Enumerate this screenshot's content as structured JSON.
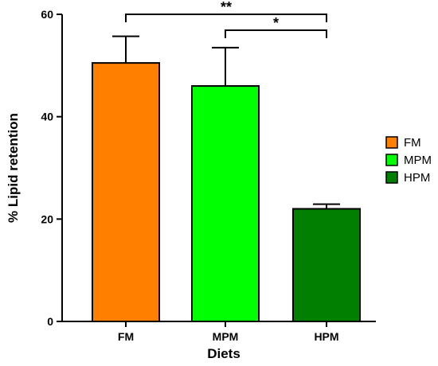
{
  "chart_data": {
    "type": "bar",
    "title": "",
    "xlabel": "Diets",
    "ylabel": "% Lipid retention",
    "ylim": [
      0,
      60
    ],
    "yticks": [
      0,
      20,
      40,
      60
    ],
    "grid": false,
    "legend_position": "right",
    "categories": [
      "FM",
      "MPM",
      "HPM"
    ],
    "series": [
      {
        "values": [
          50.5,
          46.0,
          22.0
        ],
        "errors": [
          5.2,
          7.5,
          0.9
        ],
        "colors": [
          "#ff8000",
          "#00ff00",
          "#007f00"
        ]
      }
    ],
    "legend": [
      {
        "label": "FM",
        "color": "#ff8000"
      },
      {
        "label": "MPM",
        "color": "#00ff00"
      },
      {
        "label": "HPM",
        "color": "#007f00"
      }
    ],
    "significance": [
      {
        "from": "FM",
        "to": "HPM",
        "label": "**"
      },
      {
        "from": "MPM",
        "to": "HPM",
        "label": "*"
      }
    ]
  }
}
